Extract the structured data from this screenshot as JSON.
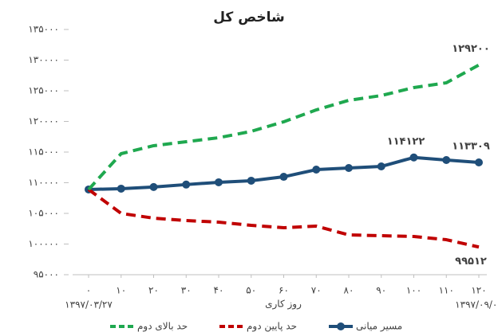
{
  "chart_data": {
    "type": "line",
    "title": "شاخص کل",
    "x_label": "روز کاری",
    "x": [
      0,
      10,
      20,
      30,
      40,
      50,
      60,
      70,
      80,
      90,
      100,
      110,
      120
    ],
    "xlim": [
      0,
      120
    ],
    "xticks": [
      {
        "value": 0,
        "label": "۰"
      },
      {
        "value": 10,
        "label": "۱۰"
      },
      {
        "value": 20,
        "label": "۲۰"
      },
      {
        "value": 30,
        "label": "۳۰"
      },
      {
        "value": 40,
        "label": "۴۰"
      },
      {
        "value": 50,
        "label": "۵۰"
      },
      {
        "value": 60,
        "label": "۶۰"
      },
      {
        "value": 70,
        "label": "۷۰"
      },
      {
        "value": 80,
        "label": "۸۰"
      },
      {
        "value": 90,
        "label": "۹۰"
      },
      {
        "value": 100,
        "label": "۱۰۰"
      },
      {
        "value": 110,
        "label": "۱۱۰"
      },
      {
        "value": 120,
        "label": "۱۲۰"
      }
    ],
    "date_labels": [
      {
        "x": 0,
        "text": "۱۳۹۷/۰۳/۲۷"
      },
      {
        "x": 120,
        "text": "۱۳۹۷/۰۹/۰۱"
      }
    ],
    "ylim": [
      95000,
      135000
    ],
    "yticks": [
      {
        "value": 95000,
        "label": "۹۵۰۰۰"
      },
      {
        "value": 100000,
        "label": "۱۰۰۰۰۰"
      },
      {
        "value": 105000,
        "label": "۱۰۵۰۰۰"
      },
      {
        "value": 110000,
        "label": "۱۱۰۰۰۰"
      },
      {
        "value": 115000,
        "label": "۱۱۵۰۰۰"
      },
      {
        "value": 120000,
        "label": "۱۲۰۰۰۰"
      },
      {
        "value": 125000,
        "label": "۱۲۵۰۰۰"
      },
      {
        "value": 130000,
        "label": "۱۳۰۰۰۰"
      },
      {
        "value": 135000,
        "label": "۱۳۵۰۰۰"
      }
    ],
    "grid": false,
    "legend": "bottom",
    "series": [
      {
        "name": "مسیر میانی",
        "color": "#1f4e79",
        "dashed": false,
        "markers": true,
        "values": [
          108900,
          109030,
          109300,
          109700,
          110070,
          110330,
          110970,
          112140,
          112400,
          112660,
          114122,
          113700,
          113309
        ],
        "value_labels": [
          null,
          null,
          null,
          null,
          null,
          null,
          null,
          null,
          null,
          null,
          "۱۱۴۱۲۲",
          null,
          "۱۱۳۳۰۹"
        ]
      },
      {
        "name": "حد پایین دوم",
        "color": "#c00000",
        "dashed": true,
        "markers": false,
        "values": [
          108900,
          105000,
          104220,
          103830,
          103570,
          103050,
          102660,
          102920,
          101490,
          101360,
          101230,
          100710,
          99512
        ],
        "value_labels": [
          null,
          null,
          null,
          null,
          null,
          null,
          null,
          null,
          null,
          null,
          null,
          null,
          "۹۹۵۱۲"
        ]
      },
      {
        "name": "حد بالای دوم",
        "color": "#1fa84f",
        "dashed": true,
        "markers": false,
        "values": [
          108900,
          114740,
          116040,
          116690,
          117340,
          118380,
          119940,
          121880,
          123440,
          124220,
          125520,
          126300,
          129200
        ],
        "value_labels": [
          null,
          null,
          null,
          null,
          null,
          null,
          null,
          null,
          null,
          null,
          null,
          null,
          "۱۲۹۲۰۰"
        ]
      }
    ]
  }
}
